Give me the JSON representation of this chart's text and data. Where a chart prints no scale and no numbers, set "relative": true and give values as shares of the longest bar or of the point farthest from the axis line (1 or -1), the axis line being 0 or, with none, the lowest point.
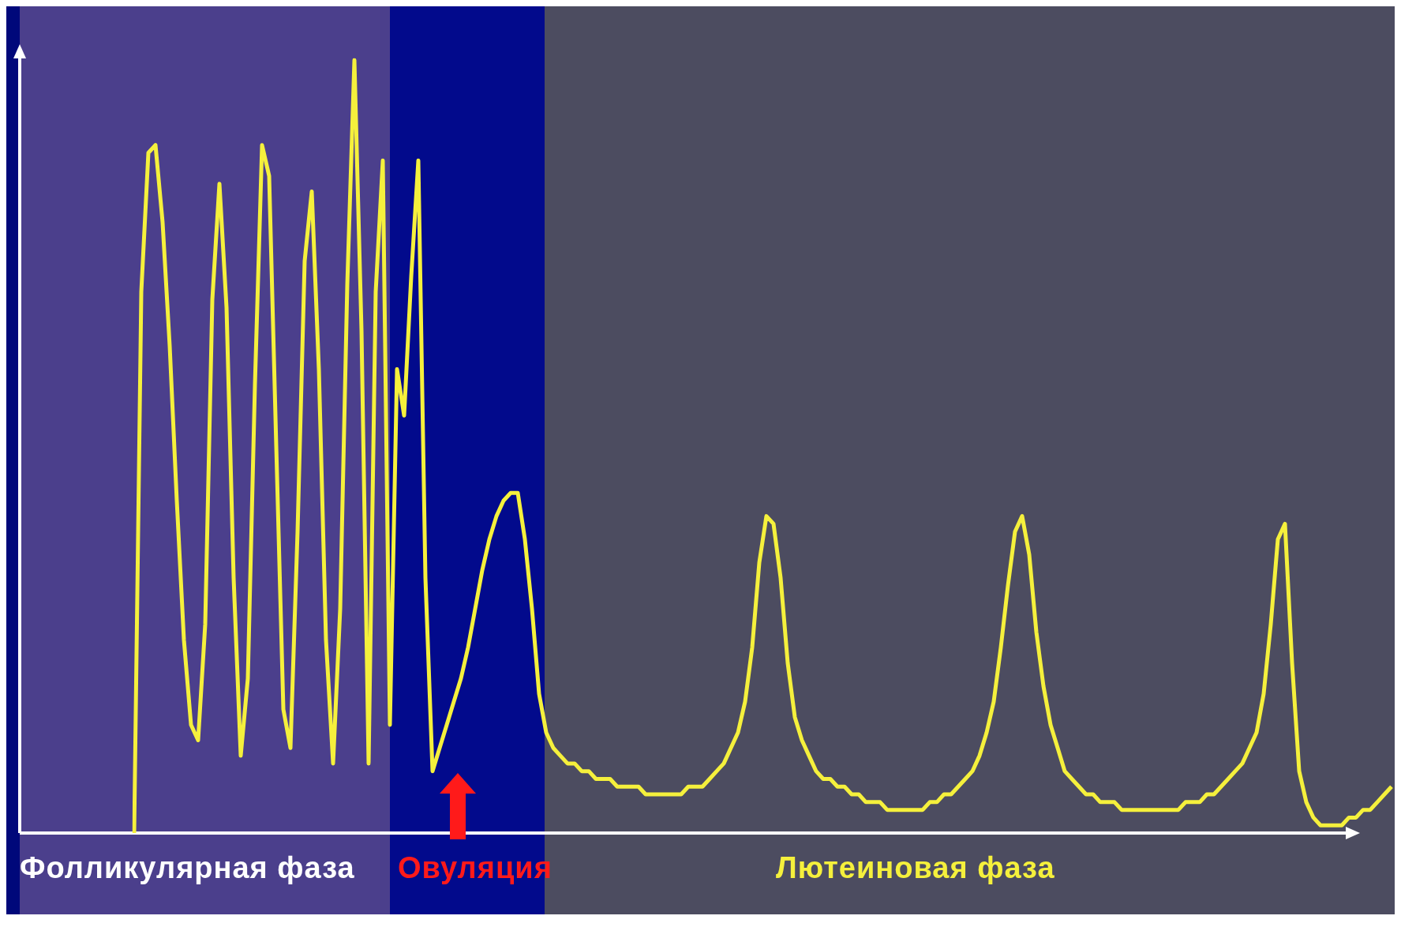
{
  "chart_data": {
    "type": "line",
    "relative": true,
    "tick_labels": false,
    "categories": [
      null,
      null,
      null,
      null,
      null,
      null,
      null,
      null,
      null,
      null,
      null,
      null,
      null,
      null,
      null,
      null,
      null,
      null,
      null,
      null,
      null,
      null,
      null,
      null,
      null,
      null,
      null,
      null,
      null,
      null,
      null,
      null,
      null,
      null,
      null,
      null,
      null,
      null,
      null,
      null,
      null,
      null,
      null,
      null,
      null,
      null,
      null,
      null,
      null,
      null,
      null,
      null,
      null,
      null,
      null,
      null,
      null,
      null,
      null,
      null,
      null,
      null,
      null,
      null,
      null,
      null,
      null,
      null,
      null,
      null,
      null,
      null,
      null,
      null,
      null,
      null,
      null,
      null,
      null,
      null,
      null,
      null,
      null,
      null,
      null,
      null,
      null,
      null,
      null,
      null,
      null,
      null,
      null,
      null,
      null,
      null,
      null,
      null,
      null,
      null,
      null,
      null,
      null,
      null,
      null,
      null,
      null,
      null,
      null,
      null,
      null,
      null,
      null,
      null,
      null,
      null,
      null,
      null,
      null,
      null,
      null,
      null,
      null,
      null,
      null,
      null,
      null,
      null,
      null,
      null,
      null,
      null,
      null,
      null,
      null,
      null,
      null,
      null,
      null,
      null,
      null,
      null,
      null,
      null,
      null,
      null,
      null,
      null,
      null,
      null,
      null,
      null,
      null,
      null,
      null,
      null,
      null,
      null,
      null,
      null,
      null,
      null,
      null,
      null,
      null,
      null,
      null,
      null,
      null,
      null,
      null,
      null,
      null,
      null,
      null,
      null,
      null,
      null
    ],
    "series": [
      {
        "color": "#f5f03c",
        "values": [
          0,
          0.7,
          0.88,
          0.89,
          0.79,
          0.63,
          0.43,
          0.25,
          0.14,
          0.12,
          0.27,
          0.69,
          0.84,
          0.68,
          0.33,
          0.1,
          0.2,
          0.58,
          0.89,
          0.85,
          0.5,
          0.16,
          0.11,
          0.39,
          0.74,
          0.83,
          0.6,
          0.25,
          0.09,
          0.29,
          0.71,
          1,
          0.65,
          0.09,
          0.7,
          0.87,
          0.14,
          0.6,
          0.54,
          0.72,
          0.87,
          0.33,
          0.08,
          0.11,
          0.14,
          0.17,
          0.2,
          0.24,
          0.29,
          0.34,
          0.38,
          0.41,
          0.43,
          0.44,
          0.44,
          0.38,
          0.29,
          0.18,
          0.13,
          0.11,
          0.1,
          0.09,
          0.09,
          0.08,
          0.08,
          0.07,
          0.07,
          0.07,
          0.06,
          0.06,
          0.06,
          0.06,
          0.05,
          0.05,
          0.05,
          0.05,
          0.05,
          0.05,
          0.06,
          0.06,
          0.06,
          0.07,
          0.08,
          0.09,
          0.11,
          0.13,
          0.17,
          0.24,
          0.35,
          0.41,
          0.4,
          0.33,
          0.22,
          0.15,
          0.12,
          0.1,
          0.08,
          0.07,
          0.07,
          0.06,
          0.06,
          0.05,
          0.05,
          0.04,
          0.04,
          0.04,
          0.03,
          0.03,
          0.03,
          0.03,
          0.03,
          0.03,
          0.04,
          0.04,
          0.05,
          0.05,
          0.06,
          0.07,
          0.08,
          0.1,
          0.13,
          0.17,
          0.24,
          0.32,
          0.39,
          0.41,
          0.36,
          0.26,
          0.19,
          0.14,
          0.11,
          0.08,
          0.07,
          0.06,
          0.05,
          0.05,
          0.04,
          0.04,
          0.04,
          0.03,
          0.03,
          0.03,
          0.03,
          0.03,
          0.03,
          0.03,
          0.03,
          0.03,
          0.04,
          0.04,
          0.04,
          0.05,
          0.05,
          0.06,
          0.07,
          0.08,
          0.09,
          0.11,
          0.13,
          0.18,
          0.27,
          0.38,
          0.4,
          0.22,
          0.08,
          0.04,
          0.02,
          0.01,
          0.01,
          0.01,
          0.01,
          0.02,
          0.02,
          0.03,
          0.03,
          0.04,
          0.05,
          0.06
        ]
      }
    ],
    "annotations": [
      "Фолликулярная фаза",
      "Овуляция",
      "Лютеиновая фаза"
    ]
  }
}
